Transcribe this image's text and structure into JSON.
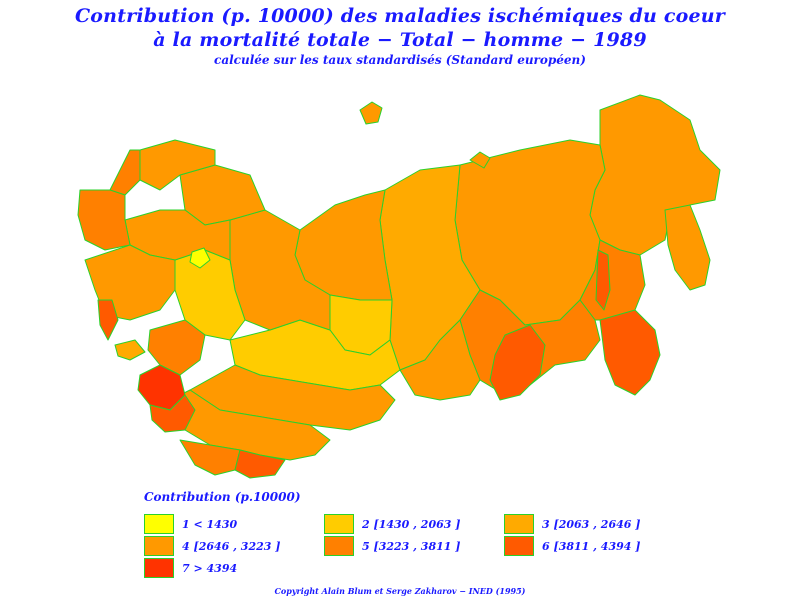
{
  "title": {
    "line1": "Contribution (p. 10000) des maladies ischémiques du coeur",
    "line2": "à la mortalité totale − Total − homme − 1989",
    "subtitle": "calculée sur les taux standardisés (Standard européen)"
  },
  "colors": {
    "border": "#2bd12b",
    "text": "#1a1aff",
    "class1": "#ffff00",
    "class2": "#ffcc00",
    "class3": "#ffaa00",
    "class4": "#ff9900",
    "class5": "#ff8000",
    "class6": "#ff5a00",
    "class7": "#ff3300"
  },
  "legend": {
    "title": "Contribution  (p.10000)",
    "items": [
      {
        "label": "1  <  1430",
        "color": "#ffff00"
      },
      {
        "label": "2  [1430  ,  2063  ]",
        "color": "#ffcc00"
      },
      {
        "label": "3  [2063  ,  2646  ]",
        "color": "#ffaa00"
      },
      {
        "label": "4  [2646  ,  3223  ]",
        "color": "#ff9900"
      },
      {
        "label": "5  [3223  ,  3811  ]",
        "color": "#ff8000"
      },
      {
        "label": "6  [3811  ,  4394  ]",
        "color": "#ff5a00"
      },
      {
        "label": "7  >  4394",
        "color": "#ff3300"
      }
    ]
  },
  "copyright": "Copyright  Alain  Blum  et  Serge  Zakharov  −  INED  (1995)"
}
